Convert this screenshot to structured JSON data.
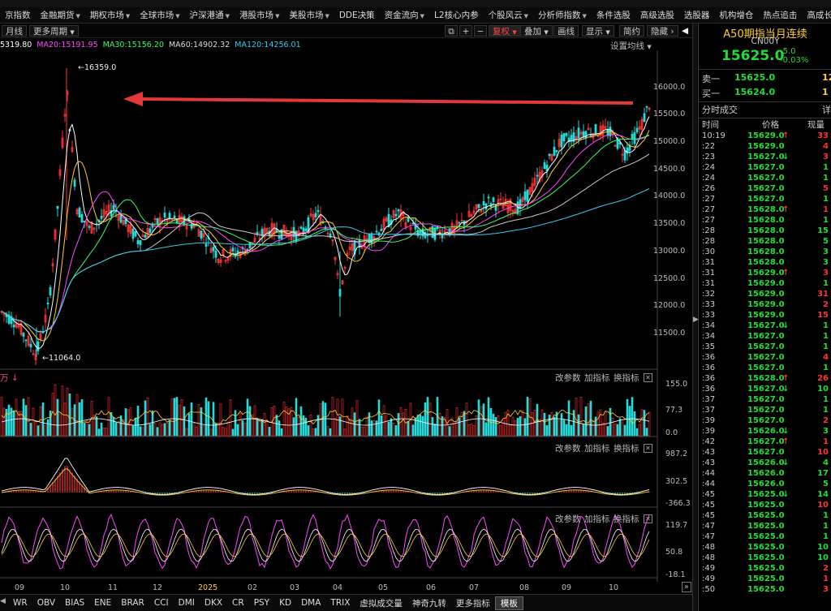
{
  "nav": [
    "京指数",
    "金融期货",
    "期权市场",
    "全球市场",
    "沪深港通",
    "港股市场",
    "美股市场",
    "DDE决策",
    "资金流向",
    "L2核心内参",
    "个股风云",
    "分析师指数",
    "条件选股",
    "高级选股",
    "选股器",
    "机构增仓",
    "热点追击",
    "高成长性"
  ],
  "toolbar": {
    "period": "月线",
    "more_period": "更多周期",
    "restore": "复权",
    "overlay": "叠加",
    "draw": "画线",
    "display": "显示",
    "brief": "简约",
    "hide": "隐藏"
  },
  "ma_line": [
    {
      "text": "5319.80",
      "color": "#ffffff"
    },
    {
      "text": "MA20:15191.95",
      "color": "#ff44ff"
    },
    {
      "text": "MA30:15156.20",
      "color": "#33ff66"
    },
    {
      "text": "MA60:14902.32",
      "color": "#dddddd"
    },
    {
      "text": "MA120:14256.01",
      "color": "#33ccee"
    }
  ],
  "settings_label": "设置均线",
  "price_axis": [
    "16000.0",
    "15500.0",
    "15000.0",
    "14500.0",
    "14000.0",
    "13500.0",
    "13000.0",
    "12500.0",
    "12000.0",
    "11500.0"
  ],
  "high_label": "16359.0",
  "low_label": "11064.0",
  "vol_unit": "万",
  "vol_axis": [
    "155.0",
    "77.3",
    "0.0"
  ],
  "macd_axis": [
    "987.2",
    "302.5",
    "-366.3"
  ],
  "ind3_axis": [
    "119.7",
    "50.8",
    "-18.1"
  ],
  "sub_controls": {
    "change_params": "改参数",
    "add_ind": "加指标",
    "switch_ind": "换指标"
  },
  "x_axis": [
    "09",
    "10",
    "11",
    "12",
    "2025",
    "02",
    "03",
    "04",
    "05",
    "06",
    "07",
    "08",
    "09",
    "10"
  ],
  "bottom_tabs": [
    "WR",
    "OBV",
    "BIAS",
    "ENE",
    "BRAR",
    "CCI",
    "DMI",
    "DKX",
    "CR",
    "PSY",
    "KD",
    "DMA",
    "TRIX",
    "虚拟成交量",
    "神奇九转",
    "更多指标",
    "模板"
  ],
  "quote": {
    "title": "A50期指当月连续",
    "code": "CN00Y",
    "price": "15625.0",
    "change": "-5.0",
    "change_pct": "-0.03%",
    "ask_label": "卖一",
    "ask_price": "15625.0",
    "ask_vol": "12",
    "bid_label": "买一",
    "bid_price": "15624.0",
    "bid_vol": "1",
    "ticks_title": "分时成交",
    "ticks_detail": "详",
    "col_time": "时间",
    "col_price": "价格",
    "col_vol": "现量"
  },
  "ticks": [
    {
      "t": "10:19",
      "p": "15629.0",
      "a": "up",
      "v": "33",
      "c": "up"
    },
    {
      "t": ":22",
      "p": "15629.0",
      "a": "",
      "v": "4",
      "c": "up"
    },
    {
      "t": ":23",
      "p": "15627.0",
      "a": "dn",
      "v": "3",
      "c": "up"
    },
    {
      "t": ":24",
      "p": "15627.0",
      "a": "",
      "v": "1",
      "c": "dn"
    },
    {
      "t": ":24",
      "p": "15627.0",
      "a": "",
      "v": "1",
      "c": "dn"
    },
    {
      "t": ":26",
      "p": "15627.0",
      "a": "",
      "v": "5",
      "c": "up"
    },
    {
      "t": ":27",
      "p": "15627.0",
      "a": "",
      "v": "1",
      "c": "dn"
    },
    {
      "t": ":27",
      "p": "15628.0",
      "a": "up",
      "v": "1",
      "c": "up"
    },
    {
      "t": ":27",
      "p": "15628.0",
      "a": "",
      "v": "1",
      "c": "dn"
    },
    {
      "t": ":28",
      "p": "15628.0",
      "a": "",
      "v": "15",
      "c": "dn"
    },
    {
      "t": ":28",
      "p": "15628.0",
      "a": "",
      "v": "5",
      "c": "dn"
    },
    {
      "t": ":30",
      "p": "15628.0",
      "a": "",
      "v": "3",
      "c": "dn"
    },
    {
      "t": ":31",
      "p": "15628.0",
      "a": "",
      "v": "3",
      "c": "dn"
    },
    {
      "t": ":31",
      "p": "15629.0",
      "a": "up",
      "v": "3",
      "c": "up"
    },
    {
      "t": ":31",
      "p": "15629.0",
      "a": "",
      "v": "1",
      "c": "dn"
    },
    {
      "t": ":32",
      "p": "15629.0",
      "a": "",
      "v": "31",
      "c": "up"
    },
    {
      "t": ":33",
      "p": "15629.0",
      "a": "",
      "v": "2",
      "c": "up"
    },
    {
      "t": ":33",
      "p": "15629.0",
      "a": "",
      "v": "15",
      "c": "up"
    },
    {
      "t": ":34",
      "p": "15627.0",
      "a": "dn",
      "v": "1",
      "c": "dn"
    },
    {
      "t": ":34",
      "p": "15627.0",
      "a": "",
      "v": "1",
      "c": "dn"
    },
    {
      "t": ":35",
      "p": "15627.0",
      "a": "",
      "v": "1",
      "c": "dn"
    },
    {
      "t": ":36",
      "p": "15627.0",
      "a": "",
      "v": "4",
      "c": "up"
    },
    {
      "t": ":36",
      "p": "15627.0",
      "a": "",
      "v": "1",
      "c": "dn"
    },
    {
      "t": ":36",
      "p": "15628.0",
      "a": "up",
      "v": "26",
      "c": "up"
    },
    {
      "t": ":36",
      "p": "15627.0",
      "a": "dn",
      "v": "10",
      "c": "dn"
    },
    {
      "t": ":37",
      "p": "15627.0",
      "a": "",
      "v": "1",
      "c": "dn"
    },
    {
      "t": ":37",
      "p": "15627.0",
      "a": "",
      "v": "1",
      "c": "dn"
    },
    {
      "t": ":39",
      "p": "15627.0",
      "a": "",
      "v": "2",
      "c": "up"
    },
    {
      "t": ":39",
      "p": "15626.0",
      "a": "dn",
      "v": "3",
      "c": "dn"
    },
    {
      "t": ":42",
      "p": "15627.0",
      "a": "up",
      "v": "1",
      "c": "up"
    },
    {
      "t": ":43",
      "p": "15627.0",
      "a": "",
      "v": "10",
      "c": "up"
    },
    {
      "t": ":43",
      "p": "15626.0",
      "a": "dn",
      "v": "4",
      "c": "dn"
    },
    {
      "t": ":44",
      "p": "15626.0",
      "a": "",
      "v": "17",
      "c": "dn"
    },
    {
      "t": ":44",
      "p": "15626.0",
      "a": "",
      "v": "5",
      "c": "dn"
    },
    {
      "t": ":45",
      "p": "15625.0",
      "a": "dn",
      "v": "14",
      "c": "dn"
    },
    {
      "t": ":45",
      "p": "15625.0",
      "a": "",
      "v": "10",
      "c": "up"
    },
    {
      "t": ":45",
      "p": "15625.0",
      "a": "",
      "v": "1",
      "c": "dn"
    },
    {
      "t": ":47",
      "p": "15625.0",
      "a": "",
      "v": "1",
      "c": "dn"
    },
    {
      "t": ":47",
      "p": "15625.0",
      "a": "",
      "v": "1",
      "c": "dn"
    },
    {
      "t": ":48",
      "p": "15625.0",
      "a": "",
      "v": "10",
      "c": "dn"
    },
    {
      "t": ":48",
      "p": "15625.0",
      "a": "",
      "v": "10",
      "c": "dn"
    },
    {
      "t": ":49",
      "p": "15625.0",
      "a": "",
      "v": "2",
      "c": "up"
    },
    {
      "t": ":49",
      "p": "15625.0",
      "a": "",
      "v": "1",
      "c": "up"
    },
    {
      "t": ":50",
      "p": "15625.0",
      "a": "",
      "v": "3",
      "c": "up"
    }
  ],
  "colors": {
    "up": "#ff3333",
    "down": "#22dd33",
    "accent": "#ffcc33",
    "bg": "#000000"
  }
}
